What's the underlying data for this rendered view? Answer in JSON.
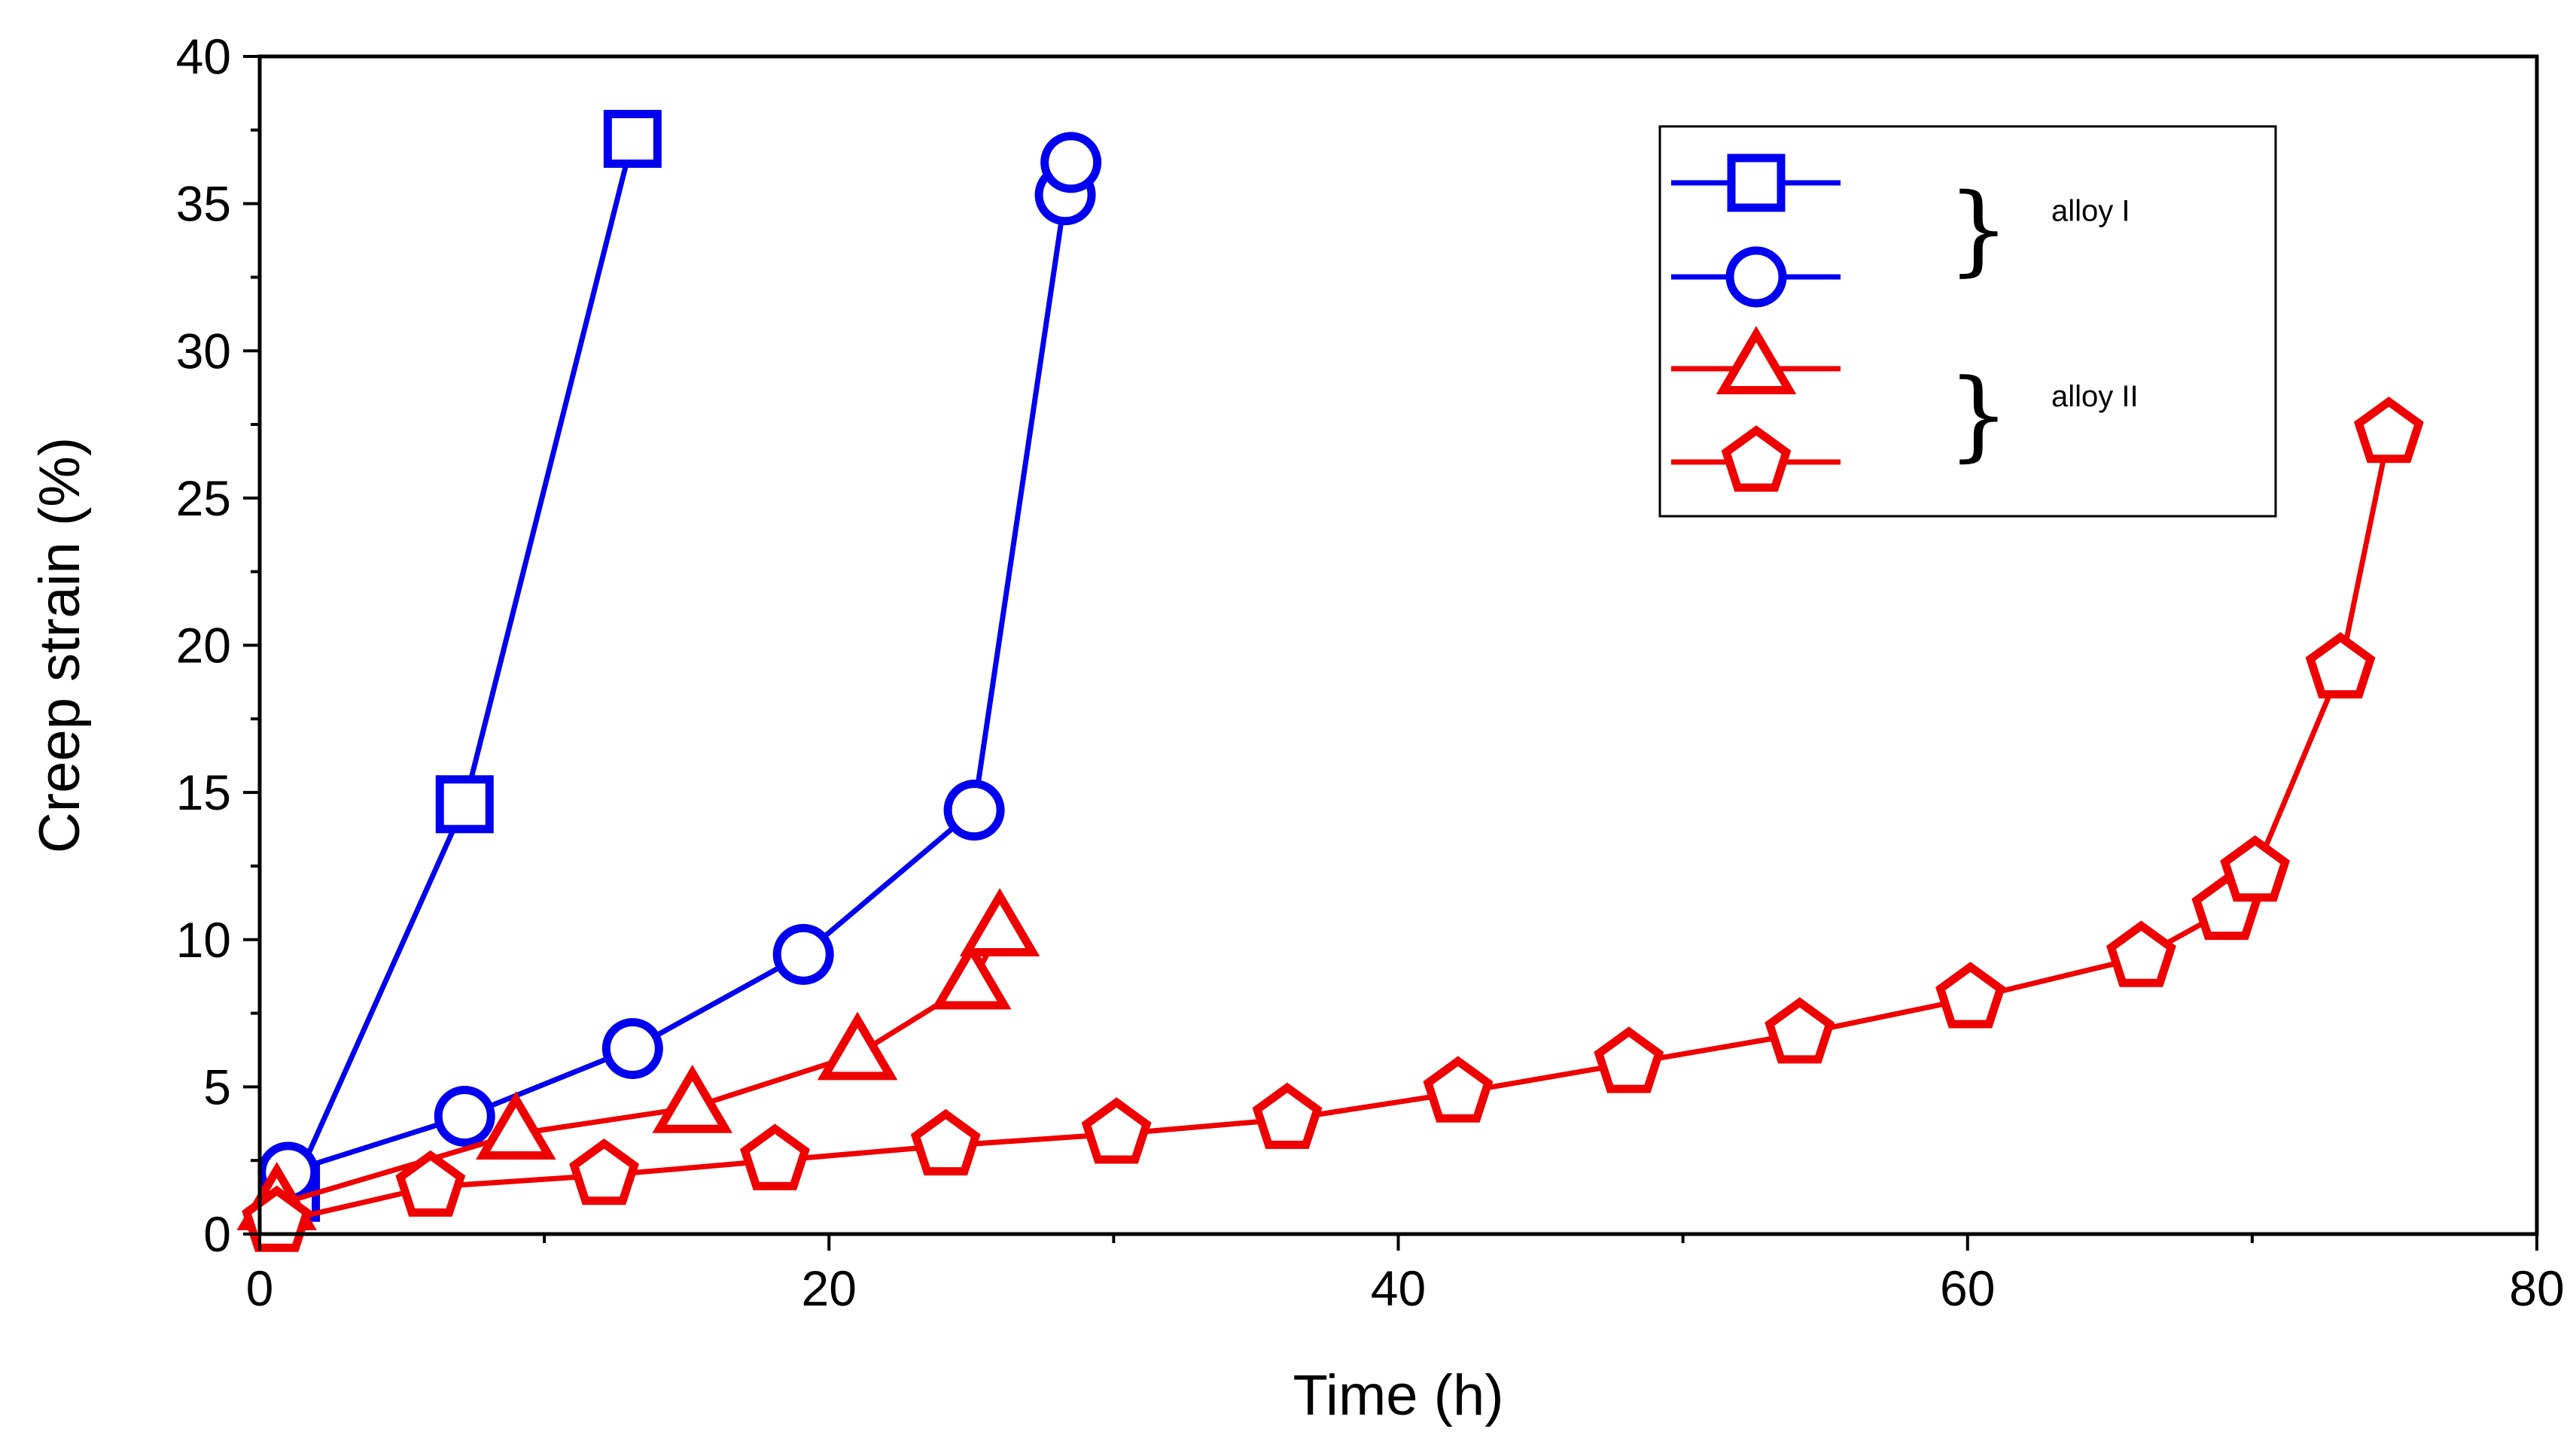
{
  "chart_data": {
    "type": "line",
    "title": "",
    "xlabel": "Time (h)",
    "ylabel": "Creep strain (%)",
    "xlim": [
      0,
      80
    ],
    "ylim": [
      0,
      40
    ],
    "x_ticks": [
      0,
      20,
      40,
      60,
      80
    ],
    "y_ticks": [
      0,
      5,
      10,
      15,
      20,
      25,
      30,
      35,
      40
    ],
    "x_tick_labels": [
      "0",
      "20",
      "40",
      "60",
      "80"
    ],
    "y_tick_labels": [
      "0",
      "5",
      "10",
      "15",
      "20",
      "25",
      "30",
      "35",
      "40"
    ],
    "grid": false,
    "legend_position": "top-right",
    "legend_groups": [
      {
        "label": "alloy I",
        "series": [
          0,
          1
        ]
      },
      {
        "label": "alloy II",
        "series": [
          2,
          3
        ]
      }
    ],
    "series": [
      {
        "name": "square",
        "marker": "square",
        "color": "#0000ee",
        "x": [
          1.1,
          7.2,
          13.1
        ],
        "y": [
          1.4,
          14.6,
          37.2
        ]
      },
      {
        "name": "circle",
        "marker": "circle",
        "color": "#0000ee",
        "x": [
          1.0,
          7.2,
          13.1,
          19.1,
          25.1,
          28.3,
          28.5
        ],
        "y": [
          2.1,
          4.0,
          6.3,
          9.5,
          14.4,
          35.3,
          36.4
        ]
      },
      {
        "name": "triangle",
        "marker": "triangle",
        "color": "#ee0000",
        "x": [
          0.6,
          9.0,
          15.2,
          21.0,
          25.0,
          26.0
        ],
        "y": [
          1.0,
          3.4,
          4.3,
          6.1,
          8.5,
          10.3
        ]
      },
      {
        "name": "pentagon",
        "marker": "pentagon",
        "color": "#ee0000",
        "x": [
          0.6,
          6.0,
          12.1,
          18.1,
          24.1,
          30.1,
          36.1,
          42.1,
          48.1,
          54.1,
          60.1,
          66.1,
          69.1,
          70.1,
          73.1,
          74.8
        ],
        "y": [
          0.4,
          1.6,
          2.0,
          2.5,
          3.0,
          3.4,
          3.9,
          4.8,
          5.8,
          6.8,
          8.0,
          9.4,
          11.0,
          12.3,
          19.2,
          27.2
        ]
      }
    ]
  }
}
